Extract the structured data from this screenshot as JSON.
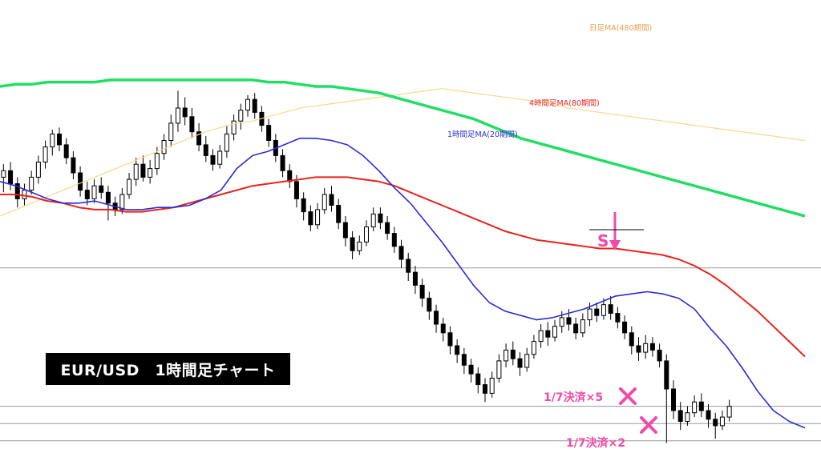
{
  "chart_data": {
    "type": "candlestick",
    "title": "EUR/USD　1時間足チャート",
    "colors": {
      "candle": "#000000",
      "ma_daily_480": "#f5d98c",
      "ma_4h_80": "#e8231c",
      "ma_1h_20": "#2b2bd8",
      "ma_long_green": "#22dd66",
      "annotation": "#f04aa8",
      "hline": "#9a9a9a"
    },
    "series": [
      {
        "name": "日足MA(480期間)",
        "key": "ma_daily_480",
        "y": [
          100,
          103,
          106,
          109,
          112,
          115,
          118,
          121,
          124,
          127,
          130,
          133,
          136,
          139,
          141,
          143,
          144,
          146,
          148,
          150,
          151,
          152,
          153,
          154,
          155,
          156,
          157,
          158,
          159,
          158,
          157,
          156,
          155,
          154,
          153,
          152,
          150,
          149,
          148,
          147,
          146,
          145,
          144,
          143,
          142,
          141,
          140,
          139,
          138,
          137,
          136,
          135
        ]
      },
      {
        "name": "4時間足MA(80期間)",
        "key": "ma_4h_80",
        "y": [
          110,
          110,
          109,
          107,
          106,
          104,
          103,
          103,
          102,
          102,
          103,
          104,
          106,
          108,
          110,
          112,
          114,
          115,
          116,
          117,
          118,
          118,
          118,
          117,
          116,
          114,
          111,
          108,
          105,
          102,
          99,
          96,
          93,
          91,
          89,
          88,
          87,
          86,
          85,
          85,
          84,
          83,
          82,
          80,
          77,
          73,
          68,
          62,
          56,
          49,
          42,
          35
        ]
      },
      {
        "name": "1時間足MA(20期間)",
        "key": "ma_1h_20",
        "y": [
          116,
          114,
          111,
          108,
          106,
          106,
          107,
          105,
          103,
          103,
          104,
          104,
          105,
          108,
          112,
          122,
          128,
          130,
          133,
          136,
          136,
          135,
          133,
          128,
          121,
          113,
          106,
          97,
          88,
          78,
          68,
          60,
          56,
          54,
          52,
          53,
          55,
          57,
          60,
          63,
          64,
          65,
          64,
          62,
          57,
          48,
          40,
          30,
          19,
          10,
          5,
          2
        ]
      },
      {
        "name": "",
        "key": "ma_long_green",
        "y": [
          160,
          161,
          161,
          162,
          162,
          162,
          162,
          163,
          163,
          163,
          163,
          163,
          163,
          163,
          163,
          163,
          163,
          162,
          162,
          161,
          160,
          160,
          159,
          158,
          157,
          155,
          153,
          151,
          149,
          147,
          145,
          142,
          139,
          136,
          134,
          132,
          130,
          128,
          126,
          124,
          122,
          120,
          118,
          116,
          114,
          112,
          110,
          108,
          106,
          104,
          102,
          100
        ]
      }
    ],
    "candles": [
      [
        118,
        121,
        111,
        124
      ],
      [
        121,
        115,
        112,
        125
      ],
      [
        115,
        108,
        104,
        118
      ],
      [
        108,
        112,
        105,
        115
      ],
      [
        112,
        118,
        110,
        121
      ],
      [
        118,
        125,
        115,
        128
      ],
      [
        125,
        132,
        122,
        135
      ],
      [
        132,
        138,
        128,
        140
      ],
      [
        138,
        133,
        130,
        141
      ],
      [
        133,
        127,
        124,
        136
      ],
      [
        127,
        120,
        117,
        130
      ],
      [
        120,
        112,
        109,
        123
      ],
      [
        112,
        108,
        105,
        116
      ],
      [
        108,
        114,
        106,
        117
      ],
      [
        114,
        111,
        108,
        118
      ],
      [
        111,
        106,
        98,
        114
      ],
      [
        106,
        103,
        100,
        109
      ],
      [
        103,
        110,
        101,
        113
      ],
      [
        110,
        117,
        108,
        120
      ],
      [
        117,
        124,
        114,
        127
      ],
      [
        124,
        118,
        116,
        128
      ],
      [
        118,
        122,
        115,
        126
      ],
      [
        122,
        129,
        119,
        132
      ],
      [
        129,
        135,
        126,
        138
      ],
      [
        135,
        143,
        132,
        147
      ],
      [
        143,
        150,
        139,
        158
      ],
      [
        150,
        146,
        142,
        155
      ],
      [
        146,
        139,
        136,
        150
      ],
      [
        139,
        133,
        130,
        143
      ],
      [
        133,
        128,
        125,
        137
      ],
      [
        128,
        124,
        121,
        131
      ],
      [
        124,
        130,
        122,
        133
      ],
      [
        130,
        138,
        127,
        142
      ],
      [
        138,
        144,
        135,
        147
      ],
      [
        144,
        149,
        140,
        152
      ],
      [
        149,
        154,
        146,
        156
      ],
      [
        154,
        148,
        145,
        157
      ],
      [
        148,
        142,
        139,
        151
      ],
      [
        142,
        135,
        132,
        145
      ],
      [
        135,
        128,
        125,
        138
      ],
      [
        128,
        121,
        118,
        131
      ],
      [
        121,
        116,
        113,
        124
      ],
      [
        116,
        108,
        104,
        119
      ],
      [
        108,
        102,
        98,
        111
      ],
      [
        102,
        96,
        93,
        105
      ],
      [
        96,
        103,
        94,
        106
      ],
      [
        103,
        110,
        101,
        113
      ],
      [
        110,
        105,
        102,
        114
      ],
      [
        105,
        97,
        94,
        108
      ],
      [
        97,
        90,
        86,
        100
      ],
      [
        90,
        84,
        80,
        93
      ],
      [
        84,
        88,
        82,
        91
      ],
      [
        88,
        95,
        86,
        98
      ],
      [
        95,
        101,
        93,
        104
      ],
      [
        101,
        97,
        94,
        104
      ],
      [
        97,
        92,
        89,
        100
      ],
      [
        92,
        86,
        83,
        95
      ],
      [
        86,
        80,
        76,
        89
      ],
      [
        80,
        74,
        70,
        83
      ],
      [
        74,
        68,
        64,
        77
      ],
      [
        68,
        62,
        58,
        71
      ],
      [
        62,
        56,
        52,
        65
      ],
      [
        56,
        50,
        46,
        59
      ],
      [
        50,
        46,
        42,
        53
      ],
      [
        46,
        40,
        36,
        49
      ],
      [
        40,
        36,
        32,
        43
      ],
      [
        36,
        31,
        27,
        39
      ],
      [
        31,
        27,
        23,
        34
      ],
      [
        27,
        22,
        18,
        30
      ],
      [
        22,
        18,
        14,
        25
      ],
      [
        18,
        25,
        16,
        28
      ],
      [
        25,
        33,
        23,
        36
      ],
      [
        33,
        38,
        30,
        41
      ],
      [
        38,
        34,
        31,
        42
      ],
      [
        34,
        30,
        26,
        37
      ],
      [
        30,
        36,
        28,
        39
      ],
      [
        36,
        42,
        34,
        45
      ],
      [
        42,
        47,
        39,
        50
      ],
      [
        47,
        44,
        40,
        51
      ],
      [
        44,
        49,
        42,
        52
      ],
      [
        49,
        53,
        46,
        56
      ],
      [
        53,
        50,
        47,
        57
      ],
      [
        50,
        46,
        43,
        53
      ],
      [
        46,
        52,
        44,
        55
      ],
      [
        52,
        57,
        49,
        60
      ],
      [
        57,
        54,
        51,
        60
      ],
      [
        54,
        59,
        52,
        62
      ],
      [
        59,
        55,
        52,
        63
      ],
      [
        55,
        51,
        48,
        58
      ],
      [
        51,
        46,
        43,
        54
      ],
      [
        46,
        40,
        36,
        49
      ],
      [
        40,
        37,
        33,
        44
      ],
      [
        37,
        41,
        34,
        45
      ],
      [
        41,
        38,
        35,
        44
      ],
      [
        38,
        33,
        30,
        41
      ],
      [
        33,
        20,
        -5,
        36
      ],
      [
        20,
        10,
        6,
        24
      ],
      [
        10,
        5,
        1,
        14
      ],
      [
        5,
        9,
        3,
        12
      ],
      [
        9,
        14,
        7,
        17
      ],
      [
        14,
        10,
        7,
        18
      ],
      [
        10,
        6,
        2,
        13
      ],
      [
        6,
        3,
        -3,
        9
      ],
      [
        3,
        7,
        1,
        10
      ],
      [
        7,
        12,
        5,
        15
      ]
    ],
    "ylim": [
      0,
      200
    ],
    "hlines": [
      76,
      12,
      4,
      -4
    ],
    "grid": false
  },
  "annotations": {
    "sell_label": "S",
    "exit1_label": "1/7決済×5",
    "exit2_label": "1/7決済×2",
    "exit_icon": "x-mark-icon",
    "sell_icon": "down-arrow-icon"
  }
}
